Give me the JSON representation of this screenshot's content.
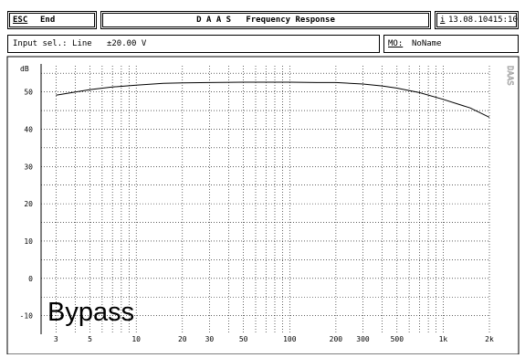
{
  "header": {
    "esc_key": "ESC",
    "esc_action": "End",
    "title": "D A A S   Frequency Response",
    "info_key": "i",
    "datetime": "13.08.10415:10"
  },
  "status_bar": {
    "input_sel": "Input sel.: Line   ±20.00 V",
    "mo_key": "MO:",
    "mo_value": "NoName"
  },
  "watermark": "DAAS",
  "bypass_label": "Bypass",
  "chart_data": {
    "type": "line",
    "title": "D A A S   Frequency Response",
    "ylabel": "dB",
    "xlabel": "",
    "x_scale": "log",
    "xlim": [
      2.4,
      2000
    ],
    "ylim": [
      -14,
      57
    ],
    "grid": true,
    "x_ticks": [
      {
        "value": 3,
        "label": "3"
      },
      {
        "value": 5,
        "label": "5"
      },
      {
        "value": 10,
        "label": "10"
      },
      {
        "value": 20,
        "label": "20"
      },
      {
        "value": 30,
        "label": "30"
      },
      {
        "value": 50,
        "label": "50"
      },
      {
        "value": 100,
        "label": "100"
      },
      {
        "value": 200,
        "label": "200"
      },
      {
        "value": 300,
        "label": "300"
      },
      {
        "value": 500,
        "label": "500"
      },
      {
        "value": 1000,
        "label": "1k"
      },
      {
        "value": 2000,
        "label": "2k"
      }
    ],
    "y_ticks": [
      -10,
      0,
      10,
      20,
      30,
      40,
      50
    ],
    "x": [
      3,
      5,
      7,
      10,
      15,
      20,
      30,
      50,
      70,
      100,
      150,
      200,
      300,
      400,
      500,
      700,
      1000,
      1500,
      2000
    ],
    "y": [
      49.1,
      50.6,
      51.3,
      51.8,
      52.3,
      52.4,
      52.5,
      52.6,
      52.6,
      52.6,
      52.5,
      52.5,
      52.1,
      51.6,
      51.0,
      49.8,
      48.0,
      45.7,
      43.2
    ]
  }
}
